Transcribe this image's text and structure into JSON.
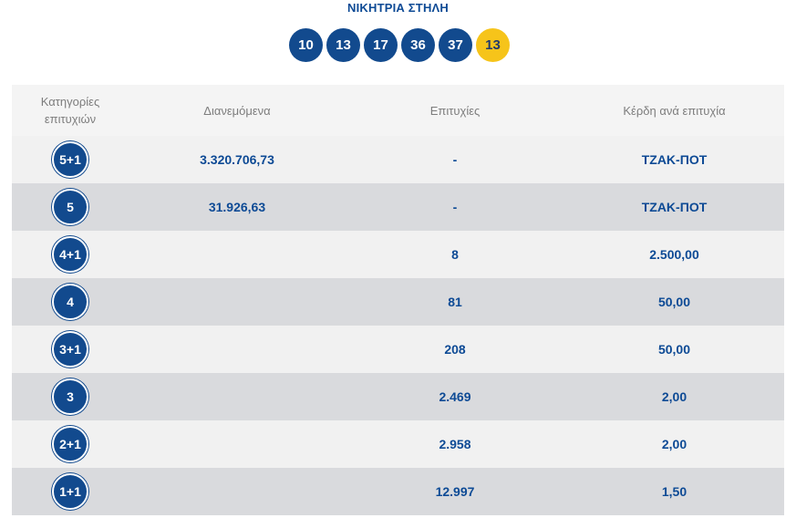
{
  "title": "ΝΙΚΗΤΡΙΑ ΣΤΗΛΗ",
  "winning_numbers": [
    "10",
    "13",
    "17",
    "36",
    "37"
  ],
  "bonus_number": "13",
  "colors": {
    "primary_blue": "#124a8e",
    "bonus_yellow": "#f6c41a",
    "row_light": "#f1f1f1",
    "row_dark": "#d9dadd"
  },
  "table": {
    "headers": {
      "category_line1": "Κατηγορίες",
      "category_line2": "επιτυχιών",
      "distributed": "Διανεμόμενα",
      "winners": "Επιτυχίες",
      "prize": "Κέρδη ανά επιτυχία"
    },
    "rows": [
      {
        "category": "5+1",
        "distributed": "3.320.706,73",
        "winners": "-",
        "prize": "ΤΖΑΚ-ΠΟΤ"
      },
      {
        "category": "5",
        "distributed": "31.926,63",
        "winners": "-",
        "prize": "ΤΖΑΚ-ΠΟΤ"
      },
      {
        "category": "4+1",
        "distributed": "",
        "winners": "8",
        "prize": "2.500,00"
      },
      {
        "category": "4",
        "distributed": "",
        "winners": "81",
        "prize": "50,00"
      },
      {
        "category": "3+1",
        "distributed": "",
        "winners": "208",
        "prize": "50,00"
      },
      {
        "category": "3",
        "distributed": "",
        "winners": "2.469",
        "prize": "2,00"
      },
      {
        "category": "2+1",
        "distributed": "",
        "winners": "2.958",
        "prize": "2,00"
      },
      {
        "category": "1+1",
        "distributed": "",
        "winners": "12.997",
        "prize": "1,50"
      }
    ]
  }
}
